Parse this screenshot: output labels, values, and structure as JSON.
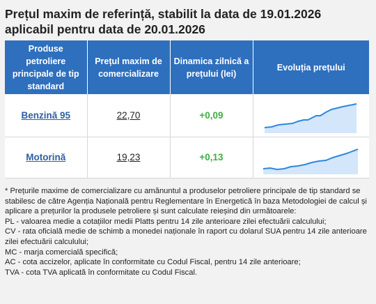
{
  "title_line1": "Prețul maxim de referință, stabilit la data de 19.01.2026",
  "title_line2": "aplicabil pentru data de 20.01.2026",
  "headers": [
    "Produse petroliere principale de tip standard",
    "Prețul maxim de comercializare",
    "Dinamica zilnică a prețului (lei)",
    "Evoluția prețului"
  ],
  "rows": [
    {
      "product": "Benzină 95",
      "price": "22,70",
      "delta": "+0,09"
    },
    {
      "product": "Motorină",
      "price": "19,23",
      "delta": "+0,13"
    }
  ],
  "colors": {
    "header_bg": "#2e6fbe",
    "spark": "#2e86e0",
    "spark_fill": "#d3e6fa",
    "delta": "#3fae3f",
    "link": "#2d5fa3"
  },
  "notes": [
    "* Prețurile maxime de comercializare cu amănuntul a produselor petroliere principale de tip standard se stabilesc de către Agenția Națională pentru Reglementare în Energetică în baza Metodologiei de calcul și aplicare a prețurilor la produsele petroliere și sunt calculate reieșind din următoarele:",
    "PL - valoarea medie a cotațiilor medii Platts pentru 14 zile anterioare zilei efectuării calculului;",
    "CV - rata oficială medie de schimb a monedei naționale în raport cu dolarul SUA pentru 14 zile anterioare zilei efectuării calculului;",
    "MC - marja comercială specifică;",
    "AC - cota accizelor, aplicate în conformitate cu Codul Fiscal, pentru 14 zile anterioare;",
    "TVA - cota TVA aplicată în conformitate cu Codul Fiscal."
  ]
}
